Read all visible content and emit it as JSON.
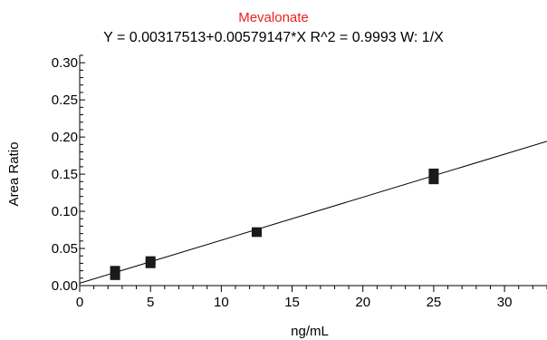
{
  "chart_data": {
    "type": "scatter",
    "title": "Mevalonate",
    "subtitle": "Y = 0.00317513+0.00579147*X   R^2 = 0.9993   W: 1/X",
    "xlabel": "ng/mL",
    "ylabel": "Area Ratio",
    "xlim": [
      0,
      33
    ],
    "ylim": [
      0,
      0.31
    ],
    "x_ticks": [
      0,
      5,
      10,
      15,
      20,
      25,
      30
    ],
    "y_ticks": [
      0.0,
      0.05,
      0.1,
      0.15,
      0.2,
      0.25,
      0.3
    ],
    "x_tick_labels": [
      "0",
      "5",
      "10",
      "15",
      "20",
      "25",
      "30"
    ],
    "y_tick_labels": [
      "0.00",
      "0.05",
      "0.10",
      "0.15",
      "0.20",
      "0.25",
      "0.30"
    ],
    "points": [
      {
        "x": 2.5,
        "y": 0.021
      },
      {
        "x": 2.5,
        "y": 0.013
      },
      {
        "x": 5.0,
        "y": 0.034
      },
      {
        "x": 5.0,
        "y": 0.029
      },
      {
        "x": 12.5,
        "y": 0.073
      },
      {
        "x": 12.5,
        "y": 0.071
      },
      {
        "x": 25.0,
        "y": 0.152
      },
      {
        "x": 25.0,
        "y": 0.142
      }
    ],
    "fit": {
      "intercept": 0.00317513,
      "slope": 0.00579147
    },
    "grid": false,
    "colors": {
      "title": "#e8231f",
      "axis": "#000000",
      "markers": "#1a1a1a",
      "line": "#000000"
    }
  }
}
